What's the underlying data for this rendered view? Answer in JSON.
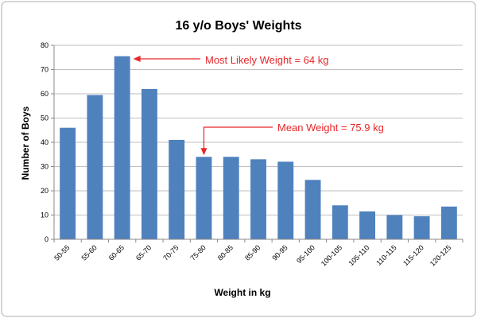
{
  "chart_data": {
    "type": "bar",
    "title": "16 y/o Boys' Weights",
    "xlabel": "Weight in kg",
    "ylabel": "Number of Boys",
    "categories": [
      "50-55",
      "55-60",
      "60-65",
      "65-70",
      "70-75",
      "75-80",
      "80-85",
      "85-90",
      "90-95",
      "95-100",
      "100-105",
      "105-110",
      "110-115",
      "115-120",
      "120-125"
    ],
    "values": [
      46,
      59.5,
      75.5,
      62,
      41,
      34,
      34,
      33,
      32,
      24.5,
      14,
      11.5,
      10,
      9.5,
      13.5
    ],
    "ylim": [
      0,
      80
    ],
    "yticks": [
      "0",
      "10",
      "20",
      "30",
      "40",
      "50",
      "60",
      "70",
      "80"
    ],
    "grid": true,
    "bar_color": "#4f81bd",
    "annotations": [
      {
        "text": "Most Likely Weight = 64 kg",
        "target_category": "60-65",
        "color": "#e8262a"
      },
      {
        "text": "Mean Weight = 75.9 kg",
        "target_category": "75-80",
        "color": "#e8262a"
      }
    ]
  }
}
